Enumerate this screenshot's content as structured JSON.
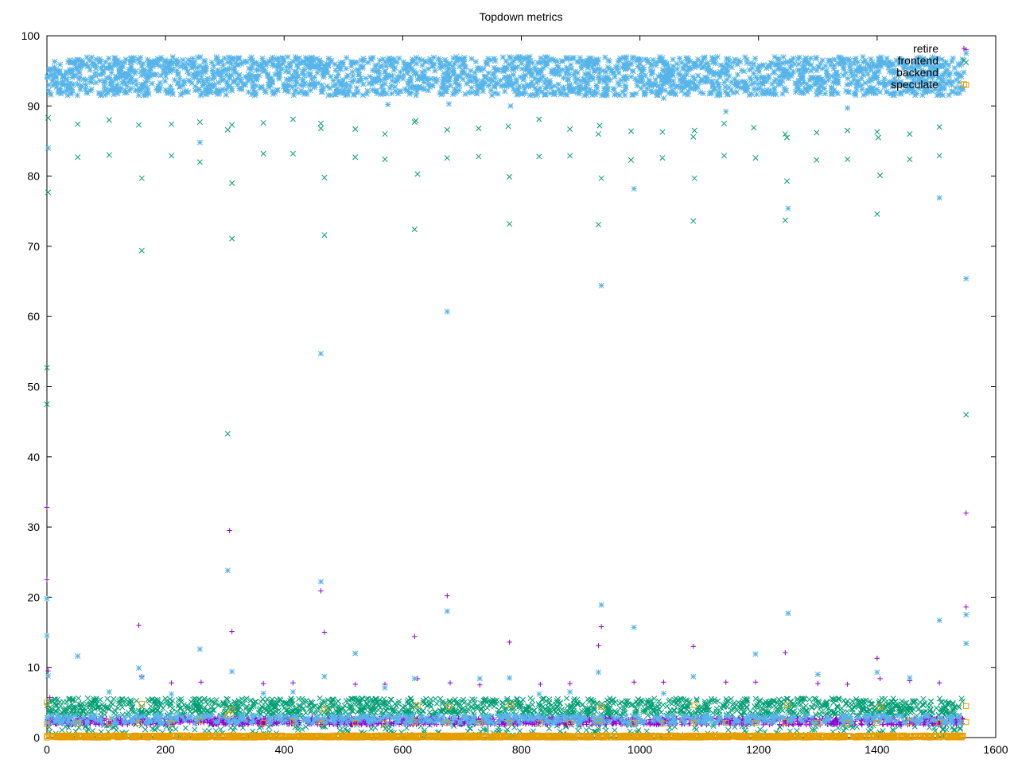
{
  "chart_data": {
    "type": "scatter",
    "title": "Topdown metrics",
    "xlabel": "",
    "ylabel": "",
    "xlim": [
      0,
      1600
    ],
    "ylim": [
      0,
      100
    ],
    "x_ticks": [
      0,
      200,
      400,
      600,
      800,
      1000,
      1200,
      1400,
      1600
    ],
    "y_ticks": [
      0,
      10,
      20,
      30,
      40,
      50,
      60,
      70,
      80,
      90,
      100
    ],
    "legend_position": "top-right",
    "series": [
      {
        "name": "retire",
        "marker": "plus",
        "color": "#9400d3",
        "points": [
          [
            0,
            32.8
          ],
          [
            0,
            22.5
          ],
          [
            2,
            9.5
          ],
          [
            5,
            5.7
          ],
          [
            155,
            16.0
          ],
          [
            160,
            8.7
          ],
          [
            210,
            7.8
          ],
          [
            260,
            7.9
          ],
          [
            308,
            29.5
          ],
          [
            312,
            15.1
          ],
          [
            365,
            7.7
          ],
          [
            415,
            7.8
          ],
          [
            462,
            20.9
          ],
          [
            468,
            15.0
          ],
          [
            520,
            7.6
          ],
          [
            570,
            7.6
          ],
          [
            620,
            14.4
          ],
          [
            625,
            8.4
          ],
          [
            675,
            20.2
          ],
          [
            680,
            7.8
          ],
          [
            730,
            7.5
          ],
          [
            780,
            13.6
          ],
          [
            832,
            7.6
          ],
          [
            882,
            7.7
          ],
          [
            930,
            13.1
          ],
          [
            935,
            15.8
          ],
          [
            990,
            7.9
          ],
          [
            1040,
            7.9
          ],
          [
            1090,
            13.0
          ],
          [
            1145,
            7.9
          ],
          [
            1195,
            7.9
          ],
          [
            1245,
            12.1
          ],
          [
            1300,
            7.7
          ],
          [
            1350,
            7.6
          ],
          [
            1400,
            11.3
          ],
          [
            1405,
            8.4
          ],
          [
            1455,
            8.1
          ],
          [
            1505,
            7.8
          ],
          [
            1550,
            32.0
          ],
          [
            1550,
            18.6
          ],
          [
            1550,
            98.0
          ]
        ]
      },
      {
        "name": "frontend",
        "marker": "x",
        "color": "#009e73",
        "points": [
          [
            0,
            52.7
          ],
          [
            0,
            47.5
          ],
          [
            2,
            88.3
          ],
          [
            2,
            77.7
          ],
          [
            52,
            87.4
          ],
          [
            52,
            82.7
          ],
          [
            105,
            88.0
          ],
          [
            105,
            83.0
          ],
          [
            155,
            87.3
          ],
          [
            160,
            79.7
          ],
          [
            160,
            69.4
          ],
          [
            210,
            87.4
          ],
          [
            210,
            82.9
          ],
          [
            258,
            87.7
          ],
          [
            258,
            82.0
          ],
          [
            305,
            86.6
          ],
          [
            305,
            43.3
          ],
          [
            312,
            87.3
          ],
          [
            312,
            79.0
          ],
          [
            312,
            71.1
          ],
          [
            365,
            87.6
          ],
          [
            365,
            83.2
          ],
          [
            415,
            88.1
          ],
          [
            415,
            83.2
          ],
          [
            462,
            87.5
          ],
          [
            462,
            86.8
          ],
          [
            468,
            79.8
          ],
          [
            468,
            71.6
          ],
          [
            520,
            86.7
          ],
          [
            520,
            82.7
          ],
          [
            570,
            86.0
          ],
          [
            570,
            82.4
          ],
          [
            620,
            87.7
          ],
          [
            622,
            87.9
          ],
          [
            625,
            80.3
          ],
          [
            620,
            72.4
          ],
          [
            675,
            86.6
          ],
          [
            675,
            82.6
          ],
          [
            728,
            86.8
          ],
          [
            728,
            82.8
          ],
          [
            778,
            87.1
          ],
          [
            780,
            79.9
          ],
          [
            780,
            73.2
          ],
          [
            830,
            88.1
          ],
          [
            830,
            82.8
          ],
          [
            882,
            86.7
          ],
          [
            882,
            82.9
          ],
          [
            930,
            86.0
          ],
          [
            932,
            87.2
          ],
          [
            935,
            79.7
          ],
          [
            930,
            73.1
          ],
          [
            985,
            86.4
          ],
          [
            985,
            82.3
          ],
          [
            1038,
            86.3
          ],
          [
            1038,
            82.6
          ],
          [
            1090,
            85.6
          ],
          [
            1092,
            86.5
          ],
          [
            1092,
            79.7
          ],
          [
            1090,
            73.6
          ],
          [
            1142,
            87.5
          ],
          [
            1142,
            82.9
          ],
          [
            1192,
            86.9
          ],
          [
            1195,
            82.6
          ],
          [
            1245,
            86.0
          ],
          [
            1248,
            85.5
          ],
          [
            1248,
            79.3
          ],
          [
            1245,
            73.7
          ],
          [
            1298,
            86.2
          ],
          [
            1298,
            82.3
          ],
          [
            1350,
            86.5
          ],
          [
            1350,
            82.4
          ],
          [
            1400,
            86.3
          ],
          [
            1402,
            85.5
          ],
          [
            1405,
            80.1
          ],
          [
            1400,
            74.6
          ],
          [
            1455,
            86.0
          ],
          [
            1455,
            82.4
          ],
          [
            1505,
            87.0
          ],
          [
            1505,
            82.9
          ],
          [
            1550,
            46.0
          ],
          [
            1550,
            96.2
          ]
        ]
      },
      {
        "name": "backend",
        "marker": "star",
        "color": "#56b4e9",
        "points": [
          [
            0,
            19.8
          ],
          [
            0,
            14.5
          ],
          [
            2,
            84.0
          ],
          [
            2,
            8.8
          ],
          [
            52,
            11.6
          ],
          [
            105,
            6.5
          ],
          [
            155,
            9.9
          ],
          [
            160,
            8.6
          ],
          [
            210,
            6.2
          ],
          [
            258,
            12.6
          ],
          [
            258,
            84.8
          ],
          [
            305,
            23.8
          ],
          [
            312,
            9.4
          ],
          [
            365,
            6.3
          ],
          [
            415,
            6.5
          ],
          [
            462,
            22.2
          ],
          [
            462,
            54.7
          ],
          [
            468,
            8.7
          ],
          [
            520,
            12.0
          ],
          [
            570,
            7.1
          ],
          [
            575,
            90.2
          ],
          [
            620,
            8.4
          ],
          [
            675,
            18.0
          ],
          [
            675,
            60.7
          ],
          [
            678,
            90.3
          ],
          [
            730,
            8.4
          ],
          [
            780,
            8.5
          ],
          [
            782,
            90.0
          ],
          [
            830,
            6.2
          ],
          [
            882,
            6.5
          ],
          [
            930,
            9.3
          ],
          [
            935,
            18.9
          ],
          [
            935,
            64.4
          ],
          [
            990,
            15.7
          ],
          [
            990,
            78.2
          ],
          [
            1040,
            6.3
          ],
          [
            1040,
            91.1
          ],
          [
            1090,
            8.7
          ],
          [
            1145,
            89.2
          ],
          [
            1195,
            11.9
          ],
          [
            1250,
            17.7
          ],
          [
            1250,
            75.4
          ],
          [
            1300,
            9.0
          ],
          [
            1350,
            89.7
          ],
          [
            1400,
            9.3
          ],
          [
            1455,
            8.5
          ],
          [
            1505,
            16.7
          ],
          [
            1505,
            76.9
          ],
          [
            1550,
            17.5
          ],
          [
            1550,
            13.4
          ],
          [
            1550,
            65.4
          ],
          [
            1550,
            97.5
          ]
        ]
      },
      {
        "name": "speculate",
        "marker": "square",
        "color": "#e69f00",
        "points": [
          [
            0,
            5.0
          ],
          [
            0,
            1.9
          ],
          [
            52,
            2.0
          ],
          [
            105,
            2.2
          ],
          [
            155,
            2.1
          ],
          [
            160,
            4.8
          ],
          [
            210,
            2.1
          ],
          [
            258,
            2.4
          ],
          [
            305,
            3.2
          ],
          [
            312,
            4.0
          ],
          [
            365,
            2.1
          ],
          [
            415,
            2.3
          ],
          [
            462,
            2.1
          ],
          [
            468,
            4.0
          ],
          [
            520,
            2.1
          ],
          [
            570,
            2.0
          ],
          [
            620,
            2.2
          ],
          [
            625,
            4.6
          ],
          [
            675,
            2.1
          ],
          [
            678,
            4.4
          ],
          [
            730,
            2.1
          ],
          [
            780,
            2.1
          ],
          [
            782,
            4.6
          ],
          [
            832,
            2.0
          ],
          [
            882,
            2.1
          ],
          [
            930,
            2.4
          ],
          [
            935,
            4.4
          ],
          [
            990,
            2.1
          ],
          [
            1040,
            2.0
          ],
          [
            1090,
            2.1
          ],
          [
            1092,
            4.6
          ],
          [
            1145,
            2.1
          ],
          [
            1195,
            2.1
          ],
          [
            1245,
            2.2
          ],
          [
            1248,
            4.6
          ],
          [
            1300,
            2.1
          ],
          [
            1350,
            2.1
          ],
          [
            1400,
            2.1
          ],
          [
            1405,
            4.4
          ],
          [
            1455,
            2.2
          ],
          [
            1505,
            2.1
          ],
          [
            1550,
            4.5
          ],
          [
            1550,
            2.2
          ],
          [
            1550,
            93.0
          ]
        ]
      }
    ],
    "dense_bands": [
      {
        "series": "backend",
        "y_range": [
          91.5,
          97.0
        ],
        "x_range": [
          0,
          1545
        ],
        "count": 2400
      },
      {
        "series": "frontend",
        "y_range": [
          3.0,
          5.6
        ],
        "x_range": [
          0,
          1545
        ],
        "count": 1500
      },
      {
        "series": "frontend",
        "y_range": [
          0.0,
          2.0
        ],
        "x_range": [
          0,
          1545
        ],
        "count": 300
      },
      {
        "series": "retire",
        "y_range": [
          1.8,
          2.8
        ],
        "x_range": [
          0,
          1545
        ],
        "count": 1400
      },
      {
        "series": "backend",
        "y_range": [
          2.0,
          3.2
        ],
        "x_range": [
          0,
          1545
        ],
        "count": 600
      },
      {
        "series": "speculate",
        "y_range": [
          0.0,
          0.3
        ],
        "x_range": [
          0,
          1545
        ],
        "count": 1500
      }
    ]
  }
}
